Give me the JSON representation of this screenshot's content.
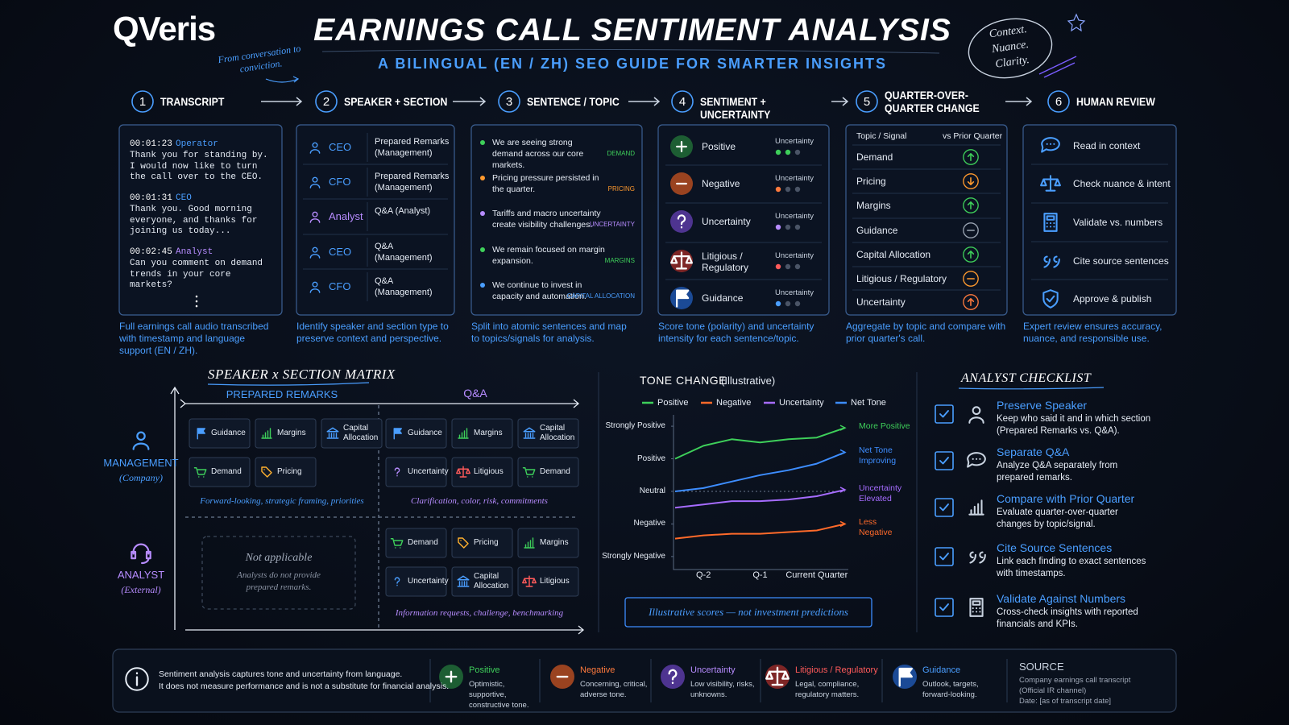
{
  "header": {
    "logo": "QVeris",
    "title": "EARNINGS CALL SENTIMENT ANALYSIS",
    "subtitle": "A BILINGUAL (EN / ZH) SEO GUIDE FOR SMARTER INSIGHTS",
    "note": "From conversation to conviction.",
    "badge": "Context. Nuance. Clarity."
  },
  "steps": [
    {
      "number": 1,
      "label": "TRANSCRIPT",
      "caption": "Full earnings call audio transcribed with timestamp and language support (EN / ZH)."
    },
    {
      "number": 2,
      "label": "SPEAKER + SECTION",
      "caption": "Identify speaker and section type to preserve context and perspective."
    },
    {
      "number": 3,
      "label": "SENTENCE / TOPIC",
      "caption": "Split into atomic sentences and map to topics/signals for analysis."
    },
    {
      "number": 4,
      "label": "SENTIMENT + UNCERTAINTY",
      "caption": "Score tone (polarity) and uncertainty intensity for each sentence/topic."
    },
    {
      "number": 5,
      "label": "QUARTER-OVER-QUARTER CHANGE",
      "caption": "Aggregate by topic and compare with prior quarter's call."
    },
    {
      "number": 6,
      "label": "HUMAN REVIEW",
      "caption": "Expert review ensures accuracy, nuance, and responsible use."
    }
  ],
  "transcript": [
    {
      "time": "00:01:23",
      "speaker": "Operator",
      "color": "#4a9eff",
      "text": "Thank you for standing by. I would now like to turn the call over to the CEO."
    },
    {
      "time": "00:01:31",
      "speaker": "CEO",
      "color": "#4a9eff",
      "text": "Thank you. Good morning everyone, and thanks for joining us today..."
    },
    {
      "time": "00:02:45",
      "speaker": "Analyst",
      "color": "#b78cff",
      "text": "Can you comment on demand trends in your core markets?"
    }
  ],
  "speakers": [
    {
      "role": "CEO",
      "color": "#4a9eff",
      "section": "Prepared Remarks (Management)"
    },
    {
      "role": "CFO",
      "color": "#4a9eff",
      "section": "Prepared Remarks (Management)"
    },
    {
      "role": "Analyst",
      "color": "#b78cff",
      "section": "Q&A (Analyst)"
    },
    {
      "role": "CEO",
      "color": "#4a9eff",
      "section": "Q&A (Management)"
    },
    {
      "role": "CFO",
      "color": "#4a9eff",
      "section": "Q&A (Management)"
    }
  ],
  "sentences": [
    {
      "text": "We are seeing strong demand across our core markets.",
      "tag": "DEMAND",
      "color": "#3ecf5a"
    },
    {
      "text": "Pricing pressure persisted in the quarter.",
      "tag": "PRICING",
      "color": "#ff9a2e"
    },
    {
      "text": "Tariffs and macro uncertainty create visibility challenges.",
      "tag": "UNCERTAINTY",
      "color": "#b78cff"
    },
    {
      "text": "We remain focused on margin expansion.",
      "tag": "MARGINS",
      "color": "#3ecf5a"
    },
    {
      "text": "We continue to invest in capacity and automation.",
      "tag": "CAPITAL ALLOCATION",
      "color": "#4a9eff"
    }
  ],
  "sentiment": {
    "uncertainty_label": "Uncertainty",
    "items": [
      {
        "label": "Positive",
        "icon": "plus",
        "color": "#3ecf5a",
        "bg": "#1d5e33",
        "uncertainty_level": 2
      },
      {
        "label": "Negative",
        "icon": "minus",
        "color": "#ff7a3d",
        "bg": "#9a4320",
        "uncertainty_level": 1
      },
      {
        "label": "Uncertainty",
        "icon": "question",
        "color": "#b78cff",
        "bg": "#4e3490",
        "uncertainty_level": 1
      },
      {
        "label": "Litigious / Regulatory",
        "icon": "scales",
        "color": "#ff5a5a",
        "bg": "#7e2626",
        "uncertainty_level": 1
      },
      {
        "label": "Guidance",
        "icon": "flag",
        "color": "#4a9eff",
        "bg": "#1b4a96",
        "uncertainty_level": 1
      }
    ]
  },
  "qoq": {
    "header": [
      "Topic / Signal",
      "vs Prior Quarter"
    ],
    "rows": [
      {
        "topic": "Demand",
        "direction": "up",
        "color": "#3ecf5a"
      },
      {
        "topic": "Pricing",
        "direction": "down",
        "color": "#ff9a2e"
      },
      {
        "topic": "Margins",
        "direction": "up",
        "color": "#3ecf5a"
      },
      {
        "topic": "Guidance",
        "direction": "flat",
        "color": "#9aa4b2"
      },
      {
        "topic": "Capital Allocation",
        "direction": "up",
        "color": "#3ecf5a"
      },
      {
        "topic": "Litigious / Regulatory",
        "direction": "flat",
        "color": "#ff9a2e"
      },
      {
        "topic": "Uncertainty",
        "direction": "up",
        "color": "#ff7a3d"
      }
    ]
  },
  "review": [
    {
      "label": "Read in context",
      "icon": "chat"
    },
    {
      "label": "Check nuance & intent",
      "icon": "scales"
    },
    {
      "label": "Validate vs. numbers",
      "icon": "calc"
    },
    {
      "label": "Cite source sentences",
      "icon": "quote"
    },
    {
      "label": "Approve & publish",
      "icon": "shield"
    }
  ],
  "matrix": {
    "title": "SPEAKER x SECTION MATRIX",
    "columns": [
      "PREPARED REMARKS",
      "Q&A"
    ],
    "rows": [
      {
        "label": "MANAGEMENT",
        "sub": "(Company)",
        "icon": "person",
        "color": "#4a9eff"
      },
      {
        "label": "ANALYST",
        "sub": "(External)",
        "icon": "headset",
        "color": "#b78cff"
      }
    ],
    "management_prepared": {
      "chips": [
        {
          "label": "Guidance",
          "icon": "flag",
          "color": "#4a9eff"
        },
        {
          "label": "Margins",
          "icon": "bars",
          "color": "#3ecf5a"
        },
        {
          "label": "Capital Allocation",
          "icon": "bank",
          "color": "#4a9eff"
        },
        {
          "label": "Demand",
          "icon": "cart",
          "color": "#3ecf5a"
        },
        {
          "label": "Pricing",
          "icon": "tag",
          "color": "#ffb02e"
        }
      ],
      "note": "Forward-looking, strategic framing, priorities"
    },
    "management_qa": {
      "chips": [
        {
          "label": "Guidance",
          "icon": "flag",
          "color": "#4a9eff"
        },
        {
          "label": "Margins",
          "icon": "bars",
          "color": "#3ecf5a"
        },
        {
          "label": "Capital Allocation",
          "icon": "bank",
          "color": "#4a9eff"
        },
        {
          "label": "Uncertainty",
          "icon": "question",
          "color": "#b78cff"
        },
        {
          "label": "Litigious",
          "icon": "scales",
          "color": "#ff5a5a"
        },
        {
          "label": "Demand",
          "icon": "cart",
          "color": "#3ecf5a"
        }
      ],
      "note": "Clarification, color, risk, commitments"
    },
    "analyst_prepared": {
      "title": "Not applicable",
      "text": "Analysts do not provide prepared remarks."
    },
    "analyst_qa": {
      "chips": [
        {
          "label": "Demand",
          "icon": "cart",
          "color": "#3ecf5a"
        },
        {
          "label": "Pricing",
          "icon": "tag",
          "color": "#ffb02e"
        },
        {
          "label": "Margins",
          "icon": "bars",
          "color": "#3ecf5a"
        },
        {
          "label": "Uncertainty",
          "icon": "question",
          "color": "#4a9eff"
        },
        {
          "label": "Capital Allocation",
          "icon": "bank",
          "color": "#4a9eff"
        },
        {
          "label": "Litigious",
          "icon": "scales",
          "color": "#ff5a5a"
        }
      ],
      "note": "Information requests, challenge, benchmarking"
    }
  },
  "chart_data": {
    "type": "line",
    "title": "TONE CHANGE",
    "subtitle": "(Illustrative)",
    "categories": [
      null,
      "Q-2",
      null,
      "Q-1",
      null,
      "Current Quarter",
      null
    ],
    "ylim": [
      -2.3,
      2.2
    ],
    "yticks": [
      {
        "value": 2,
        "label": "Strongly Positive"
      },
      {
        "value": 1,
        "label": "Positive"
      },
      {
        "value": 0,
        "label": "Neutral"
      },
      {
        "value": -1,
        "label": "Negative"
      },
      {
        "value": -2,
        "label": "Strongly Negative"
      }
    ],
    "zero_line": true,
    "series": [
      {
        "name": "Positive",
        "color": "#3ecf5a",
        "values": [
          1.0,
          1.4,
          1.6,
          1.5,
          1.6,
          1.65,
          1.95
        ],
        "end_label": "More Positive"
      },
      {
        "name": "Negative",
        "color": "#ff6a2a",
        "values": [
          -1.45,
          -1.35,
          -1.3,
          -1.3,
          -1.25,
          -1.2,
          -1.0
        ],
        "end_label": "Less Negative"
      },
      {
        "name": "Uncertainty",
        "color": "#a66cff",
        "values": [
          -0.5,
          -0.4,
          -0.3,
          -0.3,
          -0.25,
          -0.15,
          0.05
        ],
        "end_label": "Uncertainty Elevated"
      },
      {
        "name": "Net Tone",
        "color": "#3d8dff",
        "values": [
          0,
          0.1,
          0.3,
          0.5,
          0.65,
          0.85,
          1.2
        ],
        "end_label": "Net Tone Improving"
      }
    ],
    "note": "Illustrative scores — not investment predictions"
  },
  "checklist": {
    "title": "ANALYST CHECKLIST",
    "items": [
      {
        "title": "Preserve Speaker",
        "text": "Keep who said it and in which section (Prepared Remarks vs. Q&A).",
        "icon": "person"
      },
      {
        "title": "Separate Q&A",
        "text": "Analyze Q&A separately from prepared remarks.",
        "icon": "chat"
      },
      {
        "title": "Compare with Prior Quarter",
        "text": "Evaluate quarter-over-quarter changes by topic/signal.",
        "icon": "bars"
      },
      {
        "title": "Cite Source Sentences",
        "text": "Link each finding to exact sentences with timestamps.",
        "icon": "quote"
      },
      {
        "title": "Validate Against Numbers",
        "text": "Cross-check insights with reported financials and KPIs.",
        "icon": "calc"
      }
    ]
  },
  "footer": {
    "disclaimer": [
      "Sentiment analysis captures tone and uncertainty from language.",
      "It does not measure performance and is not a substitute for financial analysis."
    ],
    "legend": [
      {
        "name": "Positive",
        "desc": "Optimistic, supportive, constructive tone.",
        "icon": "plus",
        "color": "#3ecf5a",
        "bg": "#1d5e33"
      },
      {
        "name": "Negative",
        "desc": "Concerning, critical, adverse tone.",
        "icon": "minus",
        "color": "#ff7a3d",
        "bg": "#9a4320"
      },
      {
        "name": "Uncertainty",
        "desc": "Low visibility, risks, unknowns.",
        "icon": "question",
        "color": "#b78cff",
        "bg": "#4e3490"
      },
      {
        "name": "Litigious / Regulatory",
        "desc": "Legal, compliance, regulatory matters.",
        "icon": "scales",
        "color": "#ff5a5a",
        "bg": "#7e2626"
      },
      {
        "name": "Guidance",
        "desc": "Outlook, targets, forward-looking.",
        "icon": "flag",
        "color": "#4a9eff",
        "bg": "#1b4a96"
      }
    ],
    "source": {
      "title": "SOURCE",
      "lines": [
        "Company earnings call transcript",
        "(Official IR channel)",
        "Date: [as of transcript date]"
      ]
    }
  }
}
